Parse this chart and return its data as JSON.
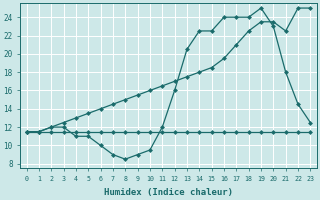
{
  "xlabel": "Humidex (Indice chaleur)",
  "bg_color": "#cde8e8",
  "line_color": "#1a6b6b",
  "grid_color": "#b8d8d8",
  "x_ticks": [
    0,
    1,
    2,
    3,
    4,
    5,
    6,
    7,
    8,
    9,
    10,
    11,
    12,
    13,
    14,
    15,
    16,
    17,
    18,
    19,
    20,
    21,
    22,
    23
  ],
  "y_ticks": [
    8,
    10,
    12,
    14,
    16,
    18,
    20,
    22,
    24
  ],
  "xlim": [
    -0.5,
    23.5
  ],
  "ylim": [
    7.5,
    25.5
  ],
  "line1_x": [
    0,
    1,
    2,
    3,
    4,
    5,
    6,
    7,
    8,
    9,
    10,
    11,
    12,
    13,
    14,
    15,
    16,
    17,
    18,
    19,
    20,
    21,
    22,
    23
  ],
  "line1_y": [
    11.5,
    11.5,
    11.5,
    11.5,
    11.5,
    11.5,
    11.5,
    11.5,
    11.5,
    11.5,
    11.5,
    11.5,
    11.5,
    11.5,
    11.5,
    11.5,
    11.5,
    11.5,
    11.5,
    11.5,
    11.5,
    11.5,
    11.5,
    11.5
  ],
  "line2_x": [
    0,
    1,
    2,
    3,
    4,
    5,
    6,
    7,
    8,
    9,
    10,
    11,
    12,
    13,
    14,
    15,
    16,
    17,
    18,
    19,
    20,
    21,
    22,
    23
  ],
  "line2_y": [
    11.5,
    11.5,
    12.0,
    12.0,
    11.0,
    11.0,
    10.0,
    9.0,
    8.5,
    9.0,
    9.5,
    12.0,
    16.0,
    20.5,
    22.5,
    22.5,
    24.0,
    24.0,
    24.0,
    25.0,
    23.0,
    18.0,
    14.5,
    12.5
  ],
  "line3_x": [
    0,
    1,
    2,
    3,
    4,
    5,
    6,
    7,
    8,
    9,
    10,
    11,
    12,
    13,
    14,
    15,
    16,
    17,
    18,
    19,
    20,
    21,
    22,
    23
  ],
  "line3_y": [
    11.5,
    11.5,
    12.0,
    12.5,
    13.0,
    13.5,
    14.0,
    14.5,
    15.0,
    15.5,
    16.0,
    16.5,
    17.0,
    17.5,
    18.0,
    18.5,
    19.5,
    21.0,
    22.5,
    23.5,
    23.5,
    22.5,
    25.0,
    25.0
  ]
}
